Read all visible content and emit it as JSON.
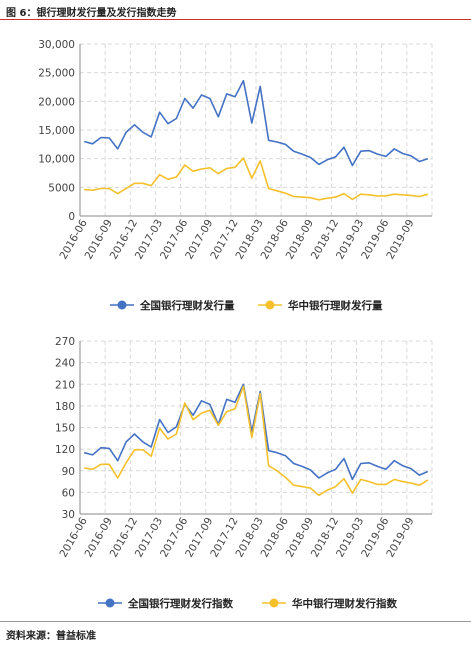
{
  "figure_title": "图 6：银行理财发行量及发行指数走势",
  "source": "资料来源：普益标准",
  "colors": {
    "blue": "#4472C4",
    "gold": "#F5C02A",
    "grid": "#d9d9d9",
    "axis": "#888888"
  },
  "chart_data": [
    {
      "type": "line",
      "title": "",
      "xlabel": "",
      "ylabel": "",
      "ylim": [
        0,
        30000
      ],
      "yticks": [
        "0",
        "5000",
        "10,000",
        "15,000",
        "20,000",
        "25,000",
        "30,000"
      ],
      "ytick_values": [
        0,
        5000,
        10000,
        15000,
        20000,
        25000,
        30000
      ],
      "xticks": [
        "2016-06",
        "2016-09",
        "2016-12",
        "2017-03",
        "2017-06",
        "2017-09",
        "2017-12",
        "2018-03",
        "2018-06",
        "2018-09",
        "2018-12",
        "2019-03",
        "2019-06",
        "2019-09"
      ],
      "legend": "bottom",
      "grid": true,
      "series": [
        {
          "name": "全国银行理财发行量",
          "color": "#4472C4",
          "values": [
            13000,
            12600,
            13700,
            13600,
            11700,
            14600,
            15900,
            14600,
            13800,
            18100,
            16100,
            17000,
            20500,
            18800,
            21100,
            20500,
            17300,
            21300,
            20800,
            23600,
            16200,
            22600,
            13200,
            12900,
            12500,
            11300,
            10800,
            10200,
            9000,
            9800,
            10300,
            12000,
            8800,
            11300,
            11400,
            10800,
            10400,
            11700,
            10900,
            10500,
            9500,
            10000
          ]
        },
        {
          "name": "华中银行理财发行量",
          "color": "#F5C02A",
          "values": [
            4600,
            4500,
            4800,
            4800,
            3900,
            4800,
            5700,
            5700,
            5300,
            7200,
            6400,
            6800,
            8900,
            7800,
            8200,
            8400,
            7400,
            8300,
            8500,
            10100,
            6600,
            9600,
            4800,
            4400,
            4000,
            3400,
            3300,
            3200,
            2800,
            3100,
            3300,
            3900,
            2900,
            3800,
            3700,
            3500,
            3500,
            3800,
            3700,
            3600,
            3400,
            3800
          ]
        }
      ]
    },
    {
      "type": "line",
      "title": "",
      "xlabel": "",
      "ylabel": "",
      "ylim": [
        30,
        270
      ],
      "yticks": [
        "30",
        "60",
        "90",
        "120",
        "150",
        "180",
        "210",
        "240",
        "270"
      ],
      "ytick_values": [
        30,
        60,
        90,
        120,
        150,
        180,
        210,
        240,
        270
      ],
      "xticks": [
        "2016-06",
        "2016-09",
        "2016-12",
        "2017-03",
        "2017-06",
        "2017-09",
        "2017-12",
        "2018-03",
        "2018-06",
        "2018-09",
        "2018-12",
        "2019-03",
        "2019-06",
        "2019-09"
      ],
      "legend": "bottom",
      "grid": true,
      "series": [
        {
          "name": "全国银行理财发行指数",
          "color": "#4472C4",
          "values": [
            115,
            112,
            122,
            121,
            104,
            130,
            141,
            130,
            123,
            161,
            143,
            151,
            182,
            167,
            187,
            182,
            154,
            189,
            185,
            210,
            144,
            200,
            118,
            115,
            111,
            100,
            96,
            91,
            80,
            87,
            92,
            107,
            78,
            100,
            101,
            96,
            92,
            104,
            97,
            93,
            84,
            89
          ]
        },
        {
          "name": "华中银行理财发行指数",
          "color": "#F5C02A",
          "values": [
            94,
            92,
            99,
            99,
            80,
            101,
            119,
            119,
            110,
            149,
            134,
            141,
            184,
            161,
            170,
            174,
            153,
            172,
            176,
            207,
            136,
            197,
            97,
            90,
            81,
            70,
            68,
            66,
            56,
            63,
            68,
            79,
            59,
            78,
            75,
            71,
            71,
            78,
            75,
            73,
            70,
            77
          ]
        }
      ]
    }
  ]
}
